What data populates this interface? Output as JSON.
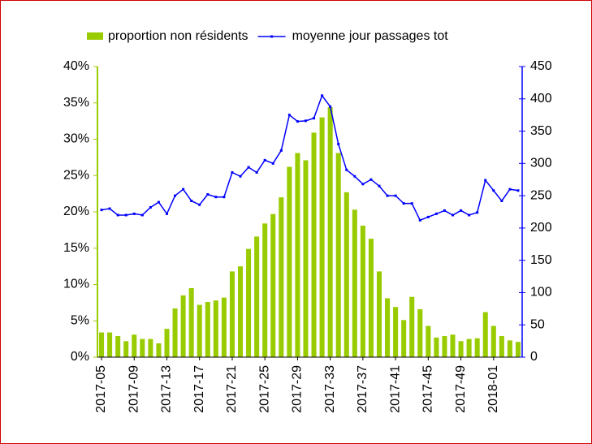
{
  "chart_data": {
    "type": "bar_line",
    "categories": [
      "2017-05",
      null,
      null,
      null,
      "2017-09",
      null,
      null,
      null,
      "2017-13",
      null,
      null,
      null,
      "2017-17",
      null,
      null,
      null,
      "2017-21",
      null,
      null,
      null,
      "2017-25",
      null,
      null,
      null,
      "2017-29",
      null,
      null,
      null,
      "2017-33",
      null,
      null,
      null,
      "2017-37",
      null,
      null,
      null,
      "2017-41",
      null,
      null,
      null,
      "2017-45",
      null,
      null,
      null,
      "2017-49",
      null,
      null,
      null,
      "2018-01",
      null,
      null,
      null
    ],
    "series": [
      {
        "name": "proportion non résidents",
        "type": "bar",
        "color": "#99cc00",
        "axis": "y",
        "values": [
          3.4,
          3.4,
          2.9,
          2.2,
          3.1,
          2.5,
          2.5,
          1.9,
          3.9,
          6.7,
          8.5,
          9.5,
          7.2,
          7.6,
          7.8,
          8.2,
          11.8,
          12.5,
          14.9,
          16.6,
          18.4,
          19.7,
          22.0,
          26.2,
          28.1,
          27.1,
          30.9,
          33.0,
          34.4,
          28.1,
          22.7,
          20.3,
          18.1,
          16.3,
          11.8,
          8.1,
          6.9,
          5.1,
          8.3,
          6.6,
          4.3,
          2.7,
          2.9,
          3.1,
          2.2,
          2.5,
          2.6,
          6.2,
          4.3,
          2.9,
          2.3,
          2.1
        ]
      },
      {
        "name": "moyenne jour passages tot",
        "type": "line",
        "color": "#0000ff",
        "axis": "y2",
        "values": [
          228,
          230,
          220,
          220,
          222,
          220,
          232,
          240,
          222,
          250,
          260,
          242,
          236,
          252,
          248,
          248,
          286,
          280,
          294,
          286,
          305,
          300,
          320,
          375,
          365,
          366,
          370,
          405,
          388,
          330,
          290,
          280,
          268,
          275,
          265,
          250,
          250,
          238,
          238,
          212,
          217,
          222,
          227,
          220,
          227,
          220,
          224,
          274,
          258,
          242,
          260,
          258
        ]
      }
    ],
    "ylim": [
      0,
      40
    ],
    "yticks": [
      {
        "value": 0,
        "label": "0%"
      },
      {
        "value": 5,
        "label": "5%"
      },
      {
        "value": 10,
        "label": "10%"
      },
      {
        "value": 15,
        "label": "15%"
      },
      {
        "value": 20,
        "label": "20%"
      },
      {
        "value": 25,
        "label": "25%"
      },
      {
        "value": 30,
        "label": "30%"
      },
      {
        "value": 35,
        "label": "35%"
      },
      {
        "value": 40,
        "label": "40%"
      }
    ],
    "y2lim": [
      0,
      450
    ],
    "y2ticks": [
      0,
      50,
      100,
      150,
      200,
      250,
      300,
      350,
      400,
      450
    ],
    "legend": "top"
  }
}
